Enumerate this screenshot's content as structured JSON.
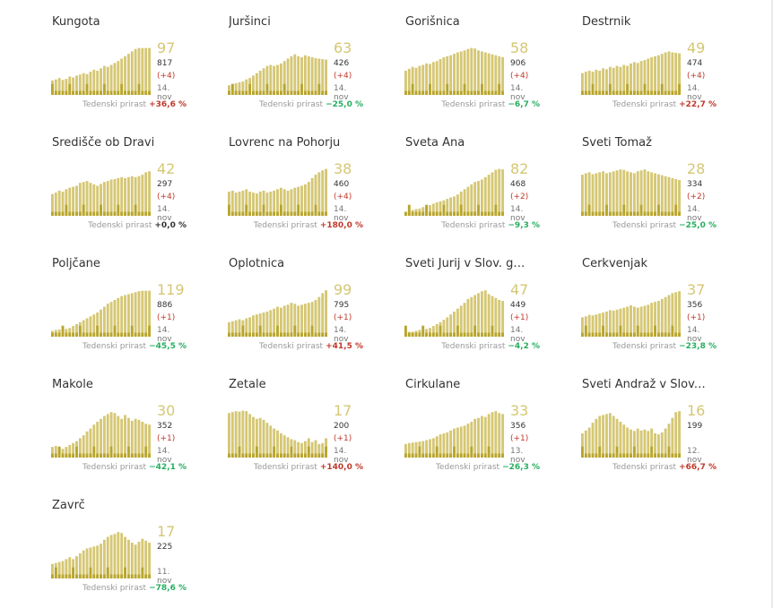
{
  "footer_label": "Tedenski prirast",
  "colors": {
    "bar_main": "#d5c774",
    "bar_sub": "#b8a52c",
    "up": "#c0392b",
    "down": "#27ae60"
  },
  "chart_data": [
    {
      "type": "bar",
      "title": "Kungota",
      "active": "97",
      "total": "817",
      "delta": "(+4)",
      "date": "14. nov",
      "change": "+36,6 %",
      "trend": "up",
      "values": [
        30,
        32,
        35,
        31,
        33,
        38,
        36,
        40,
        42,
        45,
        43,
        48,
        52,
        50,
        55,
        60,
        58,
        62,
        66,
        70,
        75,
        80,
        85,
        90,
        95,
        97,
        97,
        97,
        97
      ]
    },
    {
      "type": "bar",
      "title": "Juršinci",
      "active": "63",
      "total": "426",
      "delta": "(+4)",
      "date": "14. nov",
      "change": "−25,0 %",
      "trend": "down",
      "values": [
        20,
        22,
        24,
        26,
        28,
        32,
        35,
        40,
        45,
        50,
        55,
        60,
        62,
        60,
        62,
        65,
        70,
        75,
        80,
        84,
        80,
        78,
        82,
        80,
        78,
        76,
        75,
        74,
        73
      ]
    },
    {
      "type": "bar",
      "title": "Gorišnica",
      "active": "58",
      "total": "906",
      "delta": "(+4)",
      "date": "14. nov",
      "change": "−6,7 %",
      "trend": "down",
      "values": [
        50,
        54,
        58,
        56,
        60,
        62,
        65,
        64,
        68,
        70,
        74,
        78,
        80,
        82,
        85,
        88,
        90,
        92,
        95,
        97,
        96,
        92,
        90,
        88,
        86,
        84,
        82,
        80,
        78
      ]
    },
    {
      "type": "bar",
      "title": "Destrnik",
      "active": "49",
      "total": "474",
      "delta": "(+4)",
      "date": "14. nov",
      "change": "+22,7 %",
      "trend": "up",
      "values": [
        45,
        48,
        50,
        48,
        52,
        50,
        55,
        53,
        58,
        56,
        60,
        58,
        62,
        60,
        65,
        68,
        66,
        70,
        72,
        75,
        78,
        80,
        82,
        85,
        88,
        90,
        88,
        87,
        86
      ]
    },
    {
      "type": "bar",
      "title": "Središče ob Dravi",
      "active": "42",
      "total": "297",
      "delta": "(+4)",
      "date": "14. nov",
      "change": "+0,0 %",
      "trend": "zero",
      "values": [
        45,
        48,
        52,
        50,
        55,
        58,
        60,
        62,
        68,
        70,
        72,
        68,
        65,
        62,
        66,
        70,
        72,
        75,
        76,
        78,
        80,
        78,
        80,
        82,
        80,
        82,
        85,
        90,
        92
      ]
    },
    {
      "type": "bar",
      "title": "Lovrenc na Pohorju",
      "active": "38",
      "total": "460",
      "delta": "(+4)",
      "date": "14. nov",
      "change": "+180,0 %",
      "trend": "up",
      "values": [
        50,
        52,
        48,
        50,
        52,
        55,
        50,
        48,
        46,
        50,
        52,
        48,
        50,
        52,
        55,
        58,
        55,
        52,
        55,
        58,
        60,
        62,
        65,
        70,
        78,
        85,
        90,
        94,
        97
      ]
    },
    {
      "type": "bar",
      "title": "Sveta Ana",
      "active": "82",
      "total": "468",
      "delta": "(+2)",
      "date": "14. nov",
      "change": "−9,3 %",
      "trend": "down",
      "values": [
        8,
        10,
        12,
        14,
        15,
        18,
        20,
        22,
        25,
        28,
        30,
        32,
        35,
        38,
        40,
        44,
        50,
        55,
        60,
        65,
        70,
        72,
        75,
        80,
        85,
        90,
        95,
        97,
        96
      ]
    },
    {
      "type": "bar",
      "title": "Sveti Tomaž",
      "active": "28",
      "total": "334",
      "delta": "(+2)",
      "date": "14. nov",
      "change": "−25,0 %",
      "trend": "down",
      "values": [
        85,
        88,
        90,
        86,
        88,
        90,
        92,
        88,
        90,
        92,
        94,
        96,
        95,
        92,
        90,
        88,
        92,
        94,
        96,
        92,
        90,
        88,
        86,
        84,
        82,
        80,
        78,
        76,
        74
      ]
    },
    {
      "type": "bar",
      "title": "Poljčane",
      "active": "119",
      "total": "886",
      "delta": "(+1)",
      "date": "14. nov",
      "change": "−45,5 %",
      "trend": "down",
      "values": [
        12,
        14,
        15,
        14,
        16,
        18,
        22,
        26,
        30,
        34,
        38,
        42,
        46,
        50,
        56,
        62,
        68,
        72,
        76,
        80,
        84,
        86,
        88,
        90,
        92,
        94,
        95,
        95,
        95
      ]
    },
    {
      "type": "bar",
      "title": "Oplotnica",
      "active": "99",
      "total": "795",
      "delta": "(+1)",
      "date": "14. nov",
      "change": "+41,5 %",
      "trend": "up",
      "values": [
        30,
        32,
        34,
        36,
        34,
        38,
        40,
        44,
        46,
        48,
        50,
        52,
        55,
        58,
        62,
        60,
        64,
        66,
        70,
        68,
        64,
        66,
        68,
        70,
        72,
        76,
        82,
        90,
        96
      ]
    },
    {
      "type": "bar",
      "title": "Sveti Jurij v Slov. go...",
      "active": "47",
      "total": "449",
      "delta": "(+1)",
      "date": "14. nov",
      "change": "−4,2 %",
      "trend": "down",
      "values": [
        8,
        10,
        10,
        12,
        14,
        14,
        16,
        18,
        22,
        26,
        30,
        35,
        40,
        46,
        52,
        58,
        64,
        70,
        78,
        82,
        86,
        90,
        94,
        96,
        88,
        84,
        80,
        76,
        74
      ]
    },
    {
      "type": "bar",
      "title": "Cerkvenjak",
      "active": "37",
      "total": "356",
      "delta": "(+1)",
      "date": "14. nov",
      "change": "−23,8 %",
      "trend": "down",
      "values": [
        40,
        42,
        45,
        44,
        46,
        48,
        50,
        52,
        55,
        54,
        56,
        58,
        60,
        62,
        65,
        62,
        60,
        62,
        64,
        66,
        70,
        72,
        74,
        78,
        82,
        86,
        90,
        92,
        94
      ]
    },
    {
      "type": "bar",
      "title": "Makole",
      "active": "30",
      "total": "352",
      "delta": "(+1)",
      "date": "14. nov",
      "change": "−42,1 %",
      "trend": "down",
      "values": [
        22,
        24,
        20,
        18,
        22,
        26,
        30,
        34,
        40,
        46,
        54,
        60,
        68,
        74,
        80,
        86,
        90,
        94,
        92,
        86,
        80,
        88,
        82,
        76,
        80,
        78,
        74,
        70,
        68
      ]
    },
    {
      "type": "bar",
      "title": "Žetale",
      "active": "17",
      "total": "200",
      "delta": "(+1)",
      "date": "14. nov",
      "change": "+140,0 %",
      "trend": "up",
      "values": [
        92,
        94,
        96,
        95,
        97,
        96,
        90,
        84,
        80,
        82,
        78,
        72,
        66,
        60,
        56,
        50,
        46,
        42,
        38,
        36,
        32,
        30,
        34,
        40,
        32,
        36,
        28,
        30,
        40
      ]
    },
    {
      "type": "bar",
      "title": "Cirkulane",
      "active": "33",
      "total": "356",
      "delta": "(+1)",
      "date": "13. nov",
      "change": "−26,3 %",
      "trend": "down",
      "values": [
        28,
        30,
        31,
        32,
        33,
        34,
        36,
        38,
        40,
        44,
        48,
        50,
        52,
        56,
        60,
        62,
        64,
        66,
        70,
        74,
        80,
        82,
        86,
        84,
        90,
        94,
        96,
        92,
        90
      ]
    },
    {
      "type": "bar",
      "title": "Sveti Andraž v Slov....",
      "active": "16",
      "total": "199",
      "delta": "",
      "date": "12. nov",
      "change": "+66,7 %",
      "trend": "up",
      "values": [
        50,
        56,
        62,
        72,
        80,
        86,
        88,
        90,
        92,
        86,
        80,
        74,
        68,
        62,
        58,
        55,
        60,
        56,
        58,
        55,
        60,
        50,
        48,
        52,
        60,
        70,
        82,
        94,
        96
      ]
    },
    {
      "type": "bar",
      "title": "Zavrč",
      "active": "17",
      "total": "225",
      "delta": "",
      "date": "11. nov",
      "change": "−78,6 %",
      "trend": "down",
      "values": [
        30,
        32,
        34,
        36,
        40,
        44,
        40,
        46,
        52,
        58,
        62,
        64,
        66,
        68,
        72,
        80,
        86,
        90,
        92,
        96,
        94,
        86,
        80,
        74,
        70,
        76,
        82,
        78,
        74
      ]
    }
  ]
}
